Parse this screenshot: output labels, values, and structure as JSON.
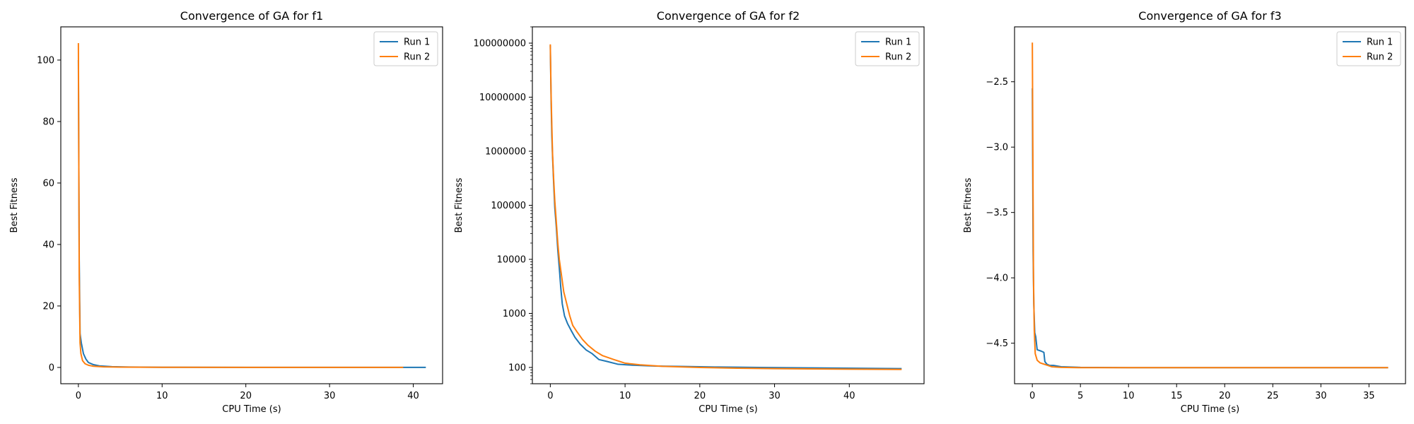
{
  "colors": {
    "run1": "#1f77b4",
    "run2": "#ff7f0e",
    "axis": "#000000",
    "background": "#ffffff"
  },
  "chart_data": [
    {
      "type": "line",
      "title": "Convergence of GA for f1",
      "xlabel": "CPU Time (s)",
      "ylabel": "Best Fitness",
      "xlim": [
        -2.1,
        43.5
      ],
      "ylim": [
        -5.3,
        110.8
      ],
      "yscale": "linear",
      "xticks": [
        0,
        10,
        20,
        30,
        40
      ],
      "yticks": [
        0,
        20,
        40,
        60,
        80,
        100
      ],
      "xtick_labels": [
        "0",
        "10",
        "20",
        "30",
        "40"
      ],
      "ytick_labels": [
        "0",
        "20",
        "40",
        "60",
        "80",
        "100"
      ],
      "legend": "top-right",
      "grid": false,
      "series": [
        {
          "name": "Run 1",
          "color": "#1f77b4",
          "x": [
            0,
            0.1,
            0.2,
            0.35,
            0.6,
            0.9,
            1.2,
            1.8,
            2.5,
            4,
            6,
            10,
            20,
            30,
            41.5
          ],
          "y": [
            100,
            35,
            11,
            8,
            4.5,
            2.7,
            1.6,
            0.9,
            0.5,
            0.25,
            0.12,
            0.05,
            0.02,
            0.01,
            0.01
          ]
        },
        {
          "name": "Run 2",
          "color": "#ff7f0e",
          "x": [
            0,
            0.1,
            0.2,
            0.3,
            0.5,
            0.8,
            1.2,
            1.8,
            3,
            5,
            10,
            20,
            30,
            38.8
          ],
          "y": [
            105.5,
            30,
            8,
            4.5,
            2.2,
            1.2,
            0.7,
            0.4,
            0.2,
            0.1,
            0.05,
            0.02,
            0.01,
            0.01
          ]
        }
      ]
    },
    {
      "type": "line",
      "title": "Convergence of GA for f2",
      "xlabel": "CPU Time (s)",
      "ylabel": "Best Fitness",
      "xlim": [
        -2.4,
        50
      ],
      "ylim": [
        50,
        200000000
      ],
      "yscale": "log",
      "xticks": [
        0,
        10,
        20,
        30,
        40
      ],
      "yticks": [
        100,
        1000,
        10000,
        100000,
        1000000,
        10000000,
        100000000
      ],
      "xtick_labels": [
        "0",
        "10",
        "20",
        "30",
        "40"
      ],
      "ytick_labels": [
        "100",
        "1000",
        "10000",
        "100000",
        "1000000",
        "10000000",
        "100000000"
      ],
      "legend": "top-right",
      "grid": false,
      "series": [
        {
          "name": "Run 1",
          "color": "#1f77b4",
          "x": [
            0,
            0.1,
            0.2,
            0.3,
            0.45,
            0.6,
            0.8,
            1.0,
            1.2,
            1.4,
            1.6,
            1.9,
            2.3,
            2.8,
            3.3,
            4.0,
            4.8,
            5.6,
            6.5,
            7.5,
            9.0,
            11,
            14,
            18,
            22,
            28,
            35,
            47
          ],
          "y": [
            90000000,
            10000000,
            2000000,
            800000,
            250000,
            90000,
            40000,
            15000,
            7000,
            3000,
            1500,
            900,
            650,
            480,
            360,
            270,
            210,
            180,
            140,
            130,
            115,
            110,
            106,
            104,
            102,
            100,
            98,
            95
          ]
        },
        {
          "name": "Run 2",
          "color": "#ff7f0e",
          "x": [
            0,
            0.1,
            0.2,
            0.3,
            0.45,
            0.6,
            0.8,
            1.0,
            1.2,
            1.5,
            1.8,
            2.2,
            2.6,
            3.0,
            3.6,
            4.3,
            5.0,
            6.0,
            7.0,
            8.5,
            10,
            12,
            15,
            20,
            25,
            30,
            40,
            47
          ],
          "y": [
            95000000,
            12000000,
            3000000,
            900000,
            300000,
            120000,
            50000,
            20000,
            10000,
            5000,
            2500,
            1500,
            900,
            600,
            450,
            330,
            260,
            200,
            165,
            140,
            120,
            112,
            105,
            100,
            97,
            95,
            93,
            92
          ]
        }
      ]
    },
    {
      "type": "line",
      "title": "Convergence of GA for f3",
      "xlabel": "CPU Time (s)",
      "ylabel": "Best Fitness",
      "xlim": [
        -1.85,
        38.8
      ],
      "ylim": [
        -4.81,
        -2.08
      ],
      "yscale": "linear",
      "xticks": [
        0,
        5,
        10,
        15,
        20,
        25,
        30,
        35
      ],
      "yticks": [
        -4.5,
        -4.0,
        -3.5,
        -3.0,
        -2.5
      ],
      "xtick_labels": [
        "0",
        "5",
        "10",
        "15",
        "20",
        "25",
        "30",
        "35"
      ],
      "ytick_labels": [
        "−4.5",
        "−4.0",
        "−3.5",
        "−3.0",
        "−2.5"
      ],
      "legend": "top-right",
      "grid": false,
      "series": [
        {
          "name": "Run 1",
          "color": "#1f77b4",
          "x": [
            0,
            0.08,
            0.15,
            0.25,
            0.35,
            0.5,
            0.9,
            1.2,
            1.3,
            1.5,
            1.8,
            2.2,
            3,
            5,
            10,
            20,
            30,
            37
          ],
          "y": [
            -2.55,
            -3.8,
            -4.2,
            -4.42,
            -4.45,
            -4.55,
            -4.56,
            -4.57,
            -4.64,
            -4.66,
            -4.67,
            -4.67,
            -4.68,
            -4.685,
            -4.687,
            -4.687,
            -4.687,
            -4.687
          ]
        },
        {
          "name": "Run 2",
          "color": "#ff7f0e",
          "x": [
            0,
            0.07,
            0.12,
            0.2,
            0.3,
            0.5,
            0.8,
            1.2,
            1.6,
            2.0,
            3,
            5,
            10,
            20,
            30,
            37
          ],
          "y": [
            -2.2,
            -3.3,
            -4.0,
            -4.4,
            -4.58,
            -4.63,
            -4.65,
            -4.66,
            -4.67,
            -4.68,
            -4.685,
            -4.687,
            -4.687,
            -4.687,
            -4.687,
            -4.687
          ]
        }
      ]
    }
  ]
}
